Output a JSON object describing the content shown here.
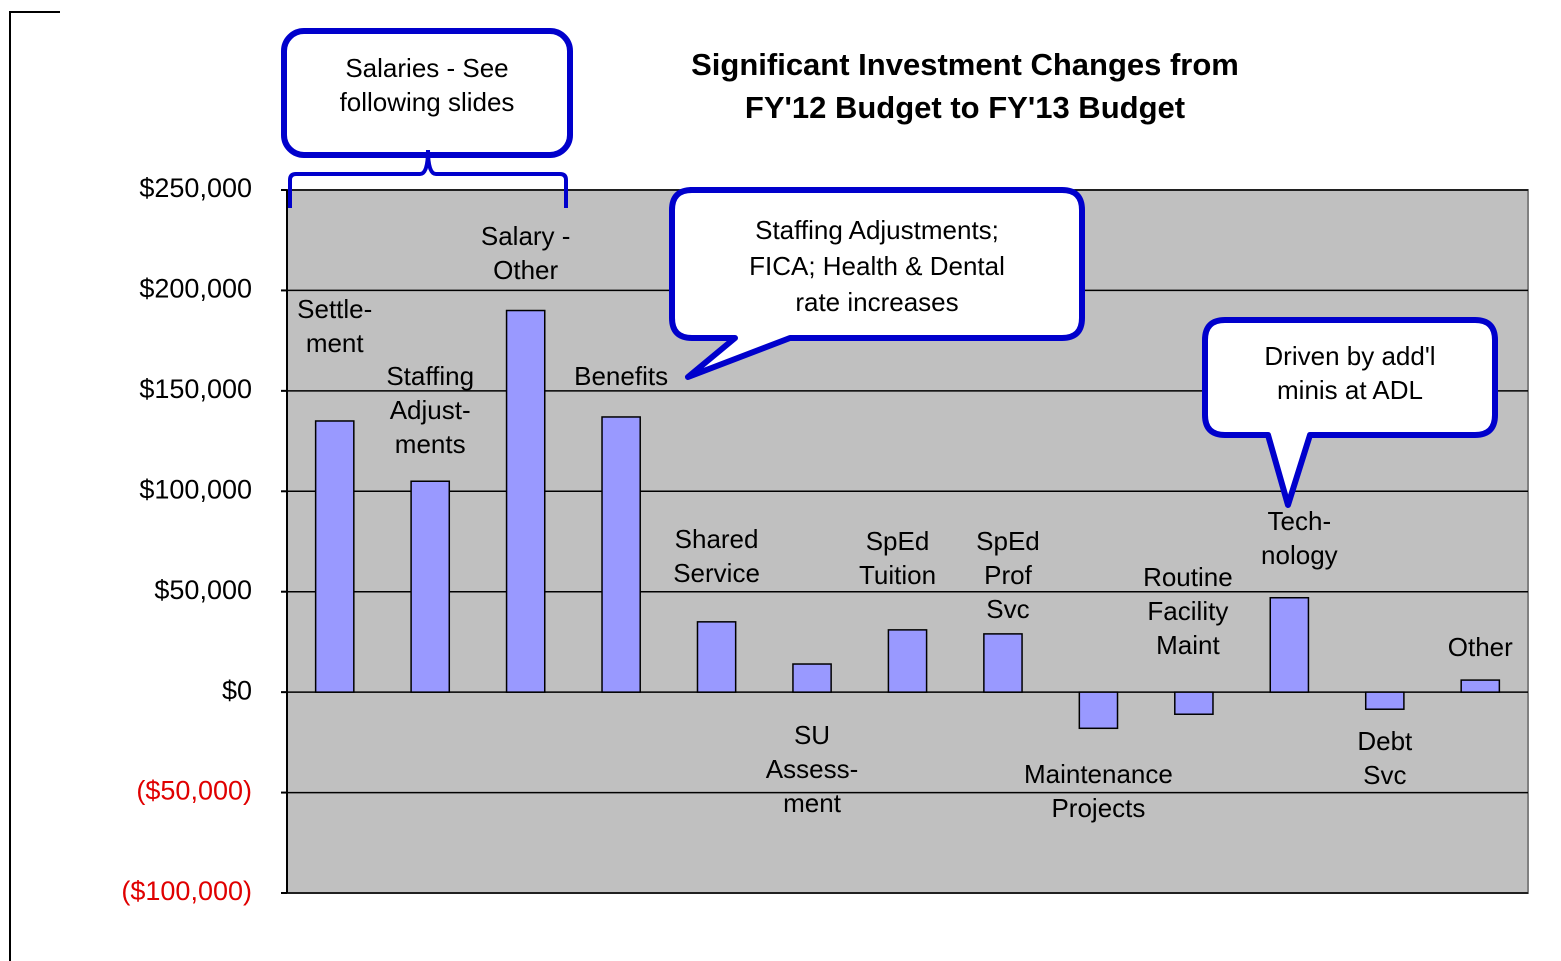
{
  "chart_data": {
    "type": "bar",
    "title": "Significant Investment Changes from\nFY'12 Budget to FY'13 Budget",
    "categories": [
      "Settle-\nment",
      "Staffing\nAdjust-\nments",
      "Salary -\nOther",
      "Benefits",
      "Shared\nService",
      "SU\nAssess-\nment",
      "SpEd\nTuition",
      "SpEd\nProf\nSvc",
      "Maintenance\nProjects",
      "Routine\nFacility\nMaint",
      "Tech-\nnology",
      "Debt\nSvc",
      "Other"
    ],
    "values": [
      135000,
      105000,
      190000,
      137000,
      35000,
      14000,
      31000,
      29000,
      -18000,
      -11000,
      47000,
      -8500,
      6000
    ],
    "color": "#9999ff",
    "plot_background": "#c0c0c0",
    "negative_tick_color": "#e00000",
    "ylim": [
      -100000,
      250000
    ],
    "yticks": [
      {
        "value": -100000,
        "label": "($100,000)"
      },
      {
        "value": -50000,
        "label": "($50,000)"
      },
      {
        "value": 0,
        "label": "$0"
      },
      {
        "value": 50000,
        "label": "$50,000"
      },
      {
        "value": 100000,
        "label": "$100,000"
      },
      {
        "value": 150000,
        "label": "$150,000"
      },
      {
        "value": 200000,
        "label": "$200,000"
      },
      {
        "value": 250000,
        "label": "$250,000"
      }
    ],
    "grid": true,
    "annotations": [
      "Salaries - See\nfollowing slides",
      "Staffing Adjustments;\nFICA; Health & Dental\nrate increases",
      "Driven by add'l\nminis at ADL"
    ]
  }
}
